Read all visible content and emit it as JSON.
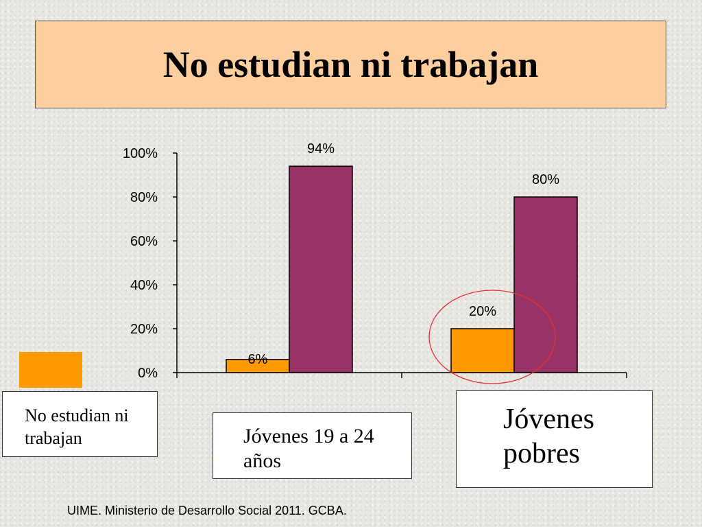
{
  "title": "No estudian ni trabajan",
  "legend": {
    "label": "No estudian ni trabajan",
    "swatch_color": "#ff9900"
  },
  "categories_labels": {
    "cat1": "Jóvenes 19 a 24 años",
    "cat2": "Jóvenes pobres"
  },
  "source": "UIME. Ministerio de Desarrollo Social 2011. GCBA.",
  "chart_data": {
    "type": "bar",
    "categories": [
      "Jóvenes 19 a 24 años",
      "Jóvenes pobres"
    ],
    "series": [
      {
        "name": "No estudian ni trabajan",
        "values": [
          6,
          20
        ],
        "labels": [
          "6%",
          "20%"
        ],
        "color": "#ff9900"
      },
      {
        "values": [
          94,
          80
        ],
        "labels": [
          "94%",
          "80%"
        ],
        "color": "#993366"
      }
    ],
    "ylim": [
      0,
      100
    ],
    "yticks": [
      "0%",
      "20%",
      "40%",
      "60%",
      "80%",
      "100%"
    ],
    "annotation": "red circle around the 20% bar"
  }
}
